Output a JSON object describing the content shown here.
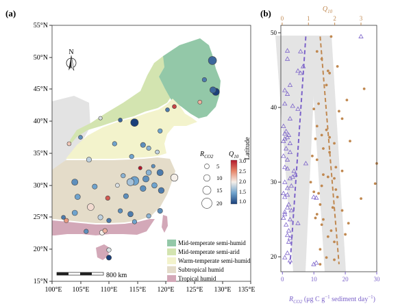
{
  "panel_a": {
    "label": "(a)",
    "lat_ticks": [
      "15°N",
      "20°N",
      "25°N",
      "30°N",
      "35°N",
      "40°N",
      "45°N",
      "50°N",
      "55°N"
    ],
    "lon_ticks": [
      "100°E",
      "105°E",
      "110°E",
      "115°E",
      "120°E",
      "125°E",
      "130°E",
      "135°E"
    ],
    "north_label": "N",
    "scale_label": "800 km",
    "rco2_title": "R",
    "rco2_title_sub": "CO2",
    "rco2_sizes": [
      "5",
      "10",
      "15",
      "20"
    ],
    "q10_title": "Q",
    "q10_title_sub": "10",
    "q10_ticks": [
      "3.0",
      "2.5",
      "2.0",
      "1.5",
      "1.0"
    ],
    "climate_zones": [
      {
        "label": "Mid-temperate semi-humid",
        "color": "#93c8a8"
      },
      {
        "label": "Mid-temperate semi-arid",
        "color": "#d3e4b0"
      },
      {
        "label": "Warm-temperate semi-humid",
        "color": "#f3f3cc"
      },
      {
        "label": "Subtropical humid",
        "color": "#e4dcc9"
      },
      {
        "label": "Tropical humid",
        "color": "#d3a8b8"
      }
    ],
    "colors": {
      "land_other": "#e3e3e3",
      "q10_high": "#b2182b",
      "q10_low": "#2166ac"
    },
    "sites": [
      {
        "lon": 128.2,
        "lat": 49.5,
        "r": 12,
        "q": 1.2
      },
      {
        "lon": 128.8,
        "lat": 44.6,
        "r": 10,
        "q": 1.0
      },
      {
        "lon": 128.3,
        "lat": 44.9,
        "r": 8,
        "q": 1.2
      },
      {
        "lon": 126.8,
        "lat": 46.5,
        "r": 4,
        "q": 1.3
      },
      {
        "lon": 126.0,
        "lat": 43.0,
        "r": 3,
        "q": 2.3
      },
      {
        "lon": 121.5,
        "lat": 42.3,
        "r": 3,
        "q": 2.8
      },
      {
        "lon": 119.0,
        "lat": 38.5,
        "r": 4,
        "q": 1.5
      },
      {
        "lon": 120.3,
        "lat": 41.8,
        "r": 3,
        "q": 1.3
      },
      {
        "lon": 114.5,
        "lat": 39.8,
        "r": 11,
        "q": 0.9
      },
      {
        "lon": 112.0,
        "lat": 40.2,
        "r": 3,
        "q": 1.2
      },
      {
        "lon": 108.5,
        "lat": 40.5,
        "r": 2,
        "q": 1.9
      },
      {
        "lon": 116.0,
        "lat": 36.3,
        "r": 5,
        "q": 1.4
      },
      {
        "lon": 117.0,
        "lat": 35.8,
        "r": 4,
        "q": 1.6
      },
      {
        "lon": 111.0,
        "lat": 36.5,
        "r": 4,
        "q": 1.5
      },
      {
        "lon": 106.5,
        "lat": 34.0,
        "r": 5,
        "q": 1.8
      },
      {
        "lon": 103.0,
        "lat": 36.5,
        "r": 3,
        "q": 2.2
      },
      {
        "lon": 105.0,
        "lat": 37.5,
        "r": 3,
        "q": 1.4
      },
      {
        "lon": 114.0,
        "lat": 34.5,
        "r": 4,
        "q": 1.5
      },
      {
        "lon": 118.5,
        "lat": 35.2,
        "r": 3,
        "q": 1.8
      },
      {
        "lon": 119.0,
        "lat": 32.0,
        "r": 8,
        "q": 1.3
      },
      {
        "lon": 121.5,
        "lat": 31.2,
        "r": 10,
        "q": 2.0
      },
      {
        "lon": 119.2,
        "lat": 29.2,
        "r": 7,
        "q": 1.3
      },
      {
        "lon": 114.5,
        "lat": 30.7,
        "r": 13,
        "q": 1.5
      },
      {
        "lon": 113.8,
        "lat": 30.5,
        "r": 10,
        "q": 1.7
      },
      {
        "lon": 116.5,
        "lat": 31.0,
        "r": 8,
        "q": 1.4
      },
      {
        "lon": 117.0,
        "lat": 32.0,
        "r": 6,
        "q": 1.6
      },
      {
        "lon": 116.0,
        "lat": 29.5,
        "r": 7,
        "q": 1.4
      },
      {
        "lon": 118.0,
        "lat": 30.0,
        "r": 6,
        "q": 1.5
      },
      {
        "lon": 112.5,
        "lat": 31.5,
        "r": 4,
        "q": 1.6
      },
      {
        "lon": 111.5,
        "lat": 30.0,
        "r": 3,
        "q": 1.9
      },
      {
        "lon": 115.5,
        "lat": 32.7,
        "r": 2,
        "q": 3.0
      },
      {
        "lon": 117.8,
        "lat": 33.0,
        "r": 2,
        "q": 1.4
      },
      {
        "lon": 104.0,
        "lat": 30.5,
        "r": 8,
        "q": 1.4
      },
      {
        "lon": 107.5,
        "lat": 29.8,
        "r": 5,
        "q": 1.5
      },
      {
        "lon": 109.8,
        "lat": 28.0,
        "r": 4,
        "q": 2.7
      },
      {
        "lon": 113.0,
        "lat": 28.3,
        "r": 5,
        "q": 1.4
      },
      {
        "lon": 104.5,
        "lat": 28.2,
        "r": 6,
        "q": 1.5
      },
      {
        "lon": 106.8,
        "lat": 26.6,
        "r": 9,
        "q": 2.1
      },
      {
        "lon": 104.0,
        "lat": 25.7,
        "r": 6,
        "q": 1.5
      },
      {
        "lon": 108.5,
        "lat": 25.0,
        "r": 5,
        "q": 1.8
      },
      {
        "lon": 110.0,
        "lat": 24.5,
        "r": 4,
        "q": 1.3
      },
      {
        "lon": 112.0,
        "lat": 26.0,
        "r": 4,
        "q": 1.4
      },
      {
        "lon": 113.8,
        "lat": 25.5,
        "r": 6,
        "q": 1.3
      },
      {
        "lon": 114.5,
        "lat": 24.3,
        "r": 4,
        "q": 1.5
      },
      {
        "lon": 117.0,
        "lat": 25.2,
        "r": 4,
        "q": 1.6
      },
      {
        "lon": 119.0,
        "lat": 26.0,
        "r": 5,
        "q": 1.4
      },
      {
        "lon": 102.5,
        "lat": 24.5,
        "r": 4,
        "q": 2.4
      },
      {
        "lon": 102.0,
        "lat": 25.0,
        "r": 3,
        "q": 1.3
      },
      {
        "lon": 106.0,
        "lat": 22.8,
        "r": 4,
        "q": 1.4
      },
      {
        "lon": 108.8,
        "lat": 22.6,
        "r": 5,
        "q": 2.0
      },
      {
        "lon": 109.3,
        "lat": 22.9,
        "r": 4,
        "q": 2.3
      },
      {
        "lon": 110.0,
        "lat": 19.9,
        "r": 4,
        "q": 1.9
      },
      {
        "lon": 110.0,
        "lat": 18.7,
        "r": 5,
        "q": 1.0
      }
    ]
  },
  "chart_data": {
    "type": "scatter",
    "label": "(b)",
    "ylabel": "Latitude",
    "xlabel_bottom": "R",
    "xlabel_bottom_sub": "CO2",
    "xlabel_bottom_units": " (μg C g",
    "xlabel_bottom_exp1": "−1",
    "xlabel_bottom_mid": " sediment day",
    "xlabel_bottom_exp2": "−1",
    "xlabel_bottom_end": ")",
    "xlabel_top": "Q",
    "xlabel_top_sub": "10",
    "xlim_bottom": [
      -0.5,
      30
    ],
    "xlim_top": [
      -0.05,
      3.6
    ],
    "ylim": [
      18,
      51
    ],
    "x_bottom_ticks": [
      "0",
      "10",
      "20",
      "30"
    ],
    "x_top_ticks": [
      "0",
      "1",
      "2",
      "3"
    ],
    "y_ticks": [
      "20",
      "30",
      "40",
      "50"
    ],
    "series": [
      {
        "axis": "top",
        "marker": "triangle",
        "color": "#7b62c9",
        "points": [
          [
            3.0,
            49.5
          ],
          [
            0.2,
            47.6
          ],
          [
            0.7,
            47.5
          ],
          [
            0.2,
            46.5
          ],
          [
            0.8,
            45.5
          ],
          [
            0.6,
            44.9
          ],
          [
            0.7,
            44.6
          ],
          [
            0.3,
            43.0
          ],
          [
            0.1,
            42.3
          ],
          [
            0.2,
            41.8
          ],
          [
            0.1,
            40.5
          ],
          [
            0.4,
            40.2
          ],
          [
            0.6,
            39.8
          ],
          [
            0.3,
            38.5
          ],
          [
            0.05,
            37.5
          ],
          [
            0.15,
            36.8
          ],
          [
            0.1,
            36.5
          ],
          [
            0.25,
            36.3
          ],
          [
            0.2,
            36.0
          ],
          [
            0.1,
            35.8
          ],
          [
            0.05,
            35.5
          ],
          [
            0.3,
            35.2
          ],
          [
            0.15,
            34.5
          ],
          [
            0.3,
            34.0
          ],
          [
            0.05,
            33.5
          ],
          [
            0.2,
            33.0
          ],
          [
            0.9,
            32.5
          ],
          [
            0.1,
            32.0
          ],
          [
            0.2,
            31.8
          ],
          [
            0.45,
            31.5
          ],
          [
            0.5,
            31.0
          ],
          [
            0.4,
            30.7
          ],
          [
            0.3,
            30.5
          ],
          [
            0.1,
            30.0
          ],
          [
            0.35,
            29.5
          ],
          [
            0.2,
            29.2
          ],
          [
            0.05,
            28.5
          ],
          [
            0.2,
            28.3
          ],
          [
            0.1,
            28.0
          ],
          [
            1.2,
            28.0
          ],
          [
            1.3,
            27.9
          ],
          [
            0.25,
            27.0
          ],
          [
            0.2,
            26.6
          ],
          [
            0.35,
            26.2
          ],
          [
            0.1,
            26.0
          ],
          [
            0.1,
            25.7
          ],
          [
            0.05,
            25.2
          ],
          [
            0.3,
            25.0
          ],
          [
            0.6,
            24.5
          ],
          [
            0.15,
            24.3
          ],
          [
            0.25,
            23.5
          ],
          [
            0.2,
            22.9
          ],
          [
            0.3,
            22.5
          ],
          [
            0.25,
            22.0
          ],
          [
            0.2,
            20.5
          ],
          [
            0.1,
            19.9
          ],
          [
            0.3,
            19.5
          ],
          [
            1.2,
            19.0
          ],
          [
            1.3,
            19.2
          ]
        ],
        "fit": [
          [
            0.9,
            49.5
          ],
          [
            0.3,
            19.0
          ]
        ]
      },
      {
        "axis": "bottom",
        "marker": "dot",
        "color": "#c08850",
        "points": [
          [
            15.5,
            49.5
          ],
          [
            11.0,
            47.5
          ],
          [
            12.5,
            46.5
          ],
          [
            17.5,
            45.5
          ],
          [
            15.0,
            44.6
          ],
          [
            14.5,
            44.9
          ],
          [
            14.0,
            43.0
          ],
          [
            26.0,
            42.5
          ],
          [
            20.5,
            41.0
          ],
          [
            11.5,
            40.5
          ],
          [
            10.0,
            39.8
          ],
          [
            18.0,
            39.5
          ],
          [
            19.0,
            38.5
          ],
          [
            11.0,
            37.5
          ],
          [
            14.0,
            37.0
          ],
          [
            12.5,
            36.3
          ],
          [
            15.0,
            36.0
          ],
          [
            10.5,
            35.8
          ],
          [
            21.5,
            35.5
          ],
          [
            16.5,
            35.2
          ],
          [
            13.0,
            34.5
          ],
          [
            15.0,
            34.0
          ],
          [
            9.5,
            33.5
          ],
          [
            11.0,
            33.0
          ],
          [
            30.0,
            32.5
          ],
          [
            17.0,
            32.0
          ],
          [
            19.0,
            31.5
          ],
          [
            13.0,
            31.0
          ],
          [
            14.5,
            30.7
          ],
          [
            16.5,
            30.5
          ],
          [
            9.0,
            30.0
          ],
          [
            29.5,
            29.8
          ],
          [
            12.5,
            29.5
          ],
          [
            17.0,
            29.0
          ],
          [
            10.0,
            28.7
          ],
          [
            11.5,
            28.5
          ],
          [
            17.5,
            28.0
          ],
          [
            25.0,
            27.8
          ],
          [
            12.0,
            27.0
          ],
          [
            16.0,
            26.6
          ],
          [
            19.0,
            26.2
          ],
          [
            11.0,
            25.7
          ],
          [
            10.5,
            25.2
          ],
          [
            13.0,
            25.0
          ],
          [
            21.0,
            24.5
          ],
          [
            12.5,
            24.3
          ],
          [
            15.5,
            23.5
          ],
          [
            20.0,
            23.0
          ],
          [
            14.5,
            22.7
          ],
          [
            16.5,
            22.0
          ],
          [
            12.0,
            21.0
          ],
          [
            14.0,
            19.9
          ],
          [
            16.5,
            19.6
          ],
          [
            12.0,
            19.0
          ]
        ],
        "fit": [
          [
            12.0,
            49.5
          ],
          [
            18.0,
            19.0
          ]
        ]
      }
    ]
  }
}
